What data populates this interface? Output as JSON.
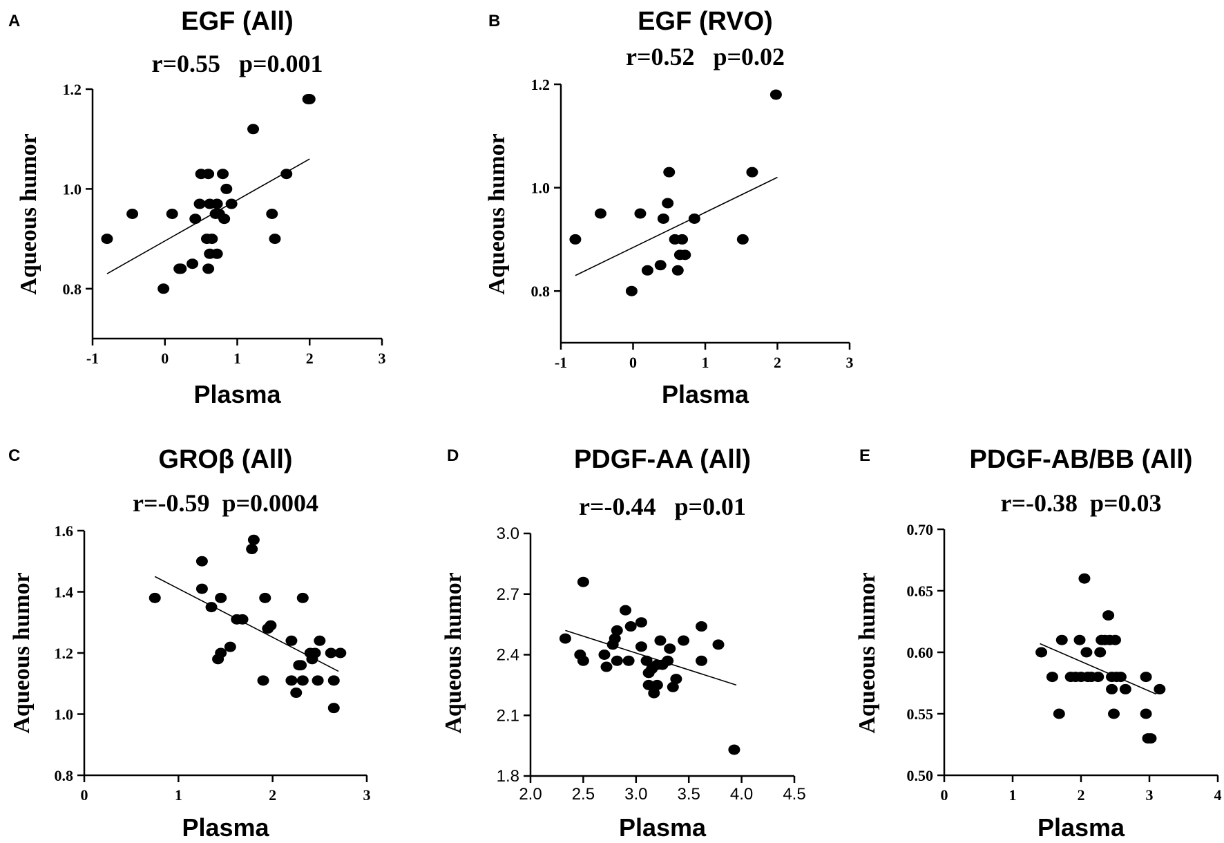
{
  "chart_data": [
    {
      "type": "scatter",
      "panel": "A",
      "title": "EGF (All)",
      "stats": "r=0.55   p=0.001",
      "xlabel": "Plasma",
      "ylabel": "Aqueous humor",
      "xlim": [
        -1,
        3
      ],
      "ylim": [
        0.7,
        1.2
      ],
      "xticks": [
        -1,
        0,
        1,
        2,
        3
      ],
      "xtick_labels": [
        "-1",
        "0",
        "1",
        "2",
        "3"
      ],
      "yticks": [
        0.8,
        1.0,
        1.2
      ],
      "ytick_labels": [
        "0.8",
        "1.0",
        "1.2"
      ],
      "fit": {
        "x": [
          -0.8,
          2.0
        ],
        "y": [
          0.83,
          1.06
        ]
      },
      "points": [
        [
          -0.8,
          0.9
        ],
        [
          -0.45,
          0.95
        ],
        [
          0.1,
          0.95
        ],
        [
          -0.02,
          0.8
        ],
        [
          0.2,
          0.84
        ],
        [
          0.22,
          0.84
        ],
        [
          0.38,
          0.85
        ],
        [
          0.42,
          0.94
        ],
        [
          0.48,
          0.97
        ],
        [
          0.5,
          1.03
        ],
        [
          0.6,
          1.03
        ],
        [
          0.58,
          0.9
        ],
        [
          0.62,
          0.97
        ],
        [
          0.62,
          0.87
        ],
        [
          0.6,
          0.84
        ],
        [
          0.65,
          0.9
        ],
        [
          0.7,
          0.95
        ],
        [
          0.72,
          0.97
        ],
        [
          0.72,
          0.87
        ],
        [
          0.75,
          0.95
        ],
        [
          0.8,
          1.03
        ],
        [
          0.82,
          0.94
        ],
        [
          0.85,
          1.0
        ],
        [
          0.92,
          0.97
        ],
        [
          1.22,
          1.12
        ],
        [
          1.48,
          0.95
        ],
        [
          1.52,
          0.9
        ],
        [
          1.68,
          1.03
        ],
        [
          1.98,
          1.18
        ],
        [
          2.0,
          1.18
        ]
      ]
    },
    {
      "type": "scatter",
      "panel": "B",
      "title": "EGF (RVO)",
      "stats": "r=0.52   p=0.02",
      "xlabel": "Plasma",
      "ylabel": "Aqueous humor",
      "xlim": [
        -1,
        3
      ],
      "ylim": [
        0.7,
        1.2
      ],
      "xticks": [
        -1,
        0,
        1,
        2,
        3
      ],
      "xtick_labels": [
        "-1",
        "0",
        "1",
        "2",
        "3"
      ],
      "yticks": [
        0.8,
        1.0,
        1.2
      ],
      "ytick_labels": [
        "0.8",
        "1.0",
        "1.2"
      ],
      "fit": {
        "x": [
          -0.8,
          2.0
        ],
        "y": [
          0.83,
          1.02
        ]
      },
      "points": [
        [
          -0.8,
          0.9
        ],
        [
          -0.45,
          0.95
        ],
        [
          0.1,
          0.95
        ],
        [
          -0.02,
          0.8
        ],
        [
          0.2,
          0.84
        ],
        [
          0.38,
          0.85
        ],
        [
          0.42,
          0.94
        ],
        [
          0.48,
          0.97
        ],
        [
          0.5,
          1.03
        ],
        [
          0.58,
          0.9
        ],
        [
          0.62,
          0.84
        ],
        [
          0.65,
          0.87
        ],
        [
          0.68,
          0.9
        ],
        [
          0.72,
          0.87
        ],
        [
          0.85,
          0.94
        ],
        [
          1.52,
          0.9
        ],
        [
          1.65,
          1.03
        ],
        [
          1.98,
          1.18
        ]
      ]
    },
    {
      "type": "scatter",
      "panel": "C",
      "title": "GROβ (All)",
      "stats": "r=-0.59  p=0.0004",
      "xlabel": "Plasma",
      "ylabel": "Aqueous humor",
      "xlim": [
        0,
        3
      ],
      "ylim": [
        0.8,
        1.6
      ],
      "xticks": [
        0,
        1,
        2,
        3
      ],
      "xtick_labels": [
        "0",
        "1",
        "2",
        "3"
      ],
      "yticks": [
        0.8,
        1.0,
        1.2,
        1.4,
        1.6
      ],
      "ytick_labels": [
        "0.8",
        "1.0",
        "1.2",
        "1.4",
        "1.6"
      ],
      "fit": {
        "x": [
          0.75,
          2.7
        ],
        "y": [
          1.45,
          1.14
        ]
      },
      "points": [
        [
          0.75,
          1.38
        ],
        [
          1.25,
          1.5
        ],
        [
          1.25,
          1.41
        ],
        [
          1.35,
          1.35
        ],
        [
          1.45,
          1.38
        ],
        [
          1.42,
          1.18
        ],
        [
          1.45,
          1.2
        ],
        [
          1.55,
          1.22
        ],
        [
          1.62,
          1.31
        ],
        [
          1.68,
          1.31
        ],
        [
          1.8,
          1.57
        ],
        [
          1.78,
          1.54
        ],
        [
          1.9,
          1.11
        ],
        [
          1.92,
          1.38
        ],
        [
          1.95,
          1.28
        ],
        [
          1.98,
          1.29
        ],
        [
          2.2,
          1.24
        ],
        [
          2.2,
          1.11
        ],
        [
          2.25,
          1.07
        ],
        [
          2.28,
          1.16
        ],
        [
          2.3,
          1.16
        ],
        [
          2.32,
          1.38
        ],
        [
          2.32,
          1.11
        ],
        [
          2.4,
          1.2
        ],
        [
          2.42,
          1.18
        ],
        [
          2.45,
          1.2
        ],
        [
          2.48,
          1.11
        ],
        [
          2.5,
          1.24
        ],
        [
          2.62,
          1.2
        ],
        [
          2.65,
          1.11
        ],
        [
          2.65,
          1.02
        ],
        [
          2.72,
          1.2
        ]
      ]
    },
    {
      "type": "scatter",
      "panel": "D",
      "title": "PDGF-AA (All)",
      "stats": "r=-0.44   p=0.01",
      "xlabel": "Plasma",
      "ylabel": "Aqueous humor",
      "xlim": [
        2.0,
        4.5
      ],
      "ylim": [
        1.8,
        3.0
      ],
      "xticks": [
        2.0,
        2.5,
        3.0,
        3.5,
        4.0,
        4.5
      ],
      "xtick_labels": [
        "2.0",
        "2.5",
        "3.0",
        "3.5",
        "4.0",
        "4.5"
      ],
      "yticks": [
        1.8,
        2.1,
        2.4,
        2.7,
        3.0
      ],
      "ytick_labels": [
        "1.8",
        "2.1",
        "2.4",
        "2.7",
        "3.0"
      ],
      "fit": {
        "x": [
          2.33,
          3.95
        ],
        "y": [
          2.52,
          2.25
        ]
      },
      "points": [
        [
          2.33,
          2.48
        ],
        [
          2.47,
          2.4
        ],
        [
          2.5,
          2.37
        ],
        [
          2.5,
          2.76
        ],
        [
          2.7,
          2.4
        ],
        [
          2.72,
          2.34
        ],
        [
          2.78,
          2.45
        ],
        [
          2.8,
          2.48
        ],
        [
          2.82,
          2.52
        ],
        [
          2.82,
          2.37
        ],
        [
          2.9,
          2.62
        ],
        [
          2.93,
          2.37
        ],
        [
          2.95,
          2.54
        ],
        [
          3.05,
          2.56
        ],
        [
          3.05,
          2.44
        ],
        [
          3.1,
          2.37
        ],
        [
          3.12,
          2.31
        ],
        [
          3.12,
          2.25
        ],
        [
          3.15,
          2.33
        ],
        [
          3.17,
          2.21
        ],
        [
          3.2,
          2.25
        ],
        [
          3.2,
          2.35
        ],
        [
          3.23,
          2.47
        ],
        [
          3.25,
          2.35
        ],
        [
          3.3,
          2.37
        ],
        [
          3.32,
          2.43
        ],
        [
          3.35,
          2.24
        ],
        [
          3.38,
          2.28
        ],
        [
          3.45,
          2.47
        ],
        [
          3.62,
          2.54
        ],
        [
          3.62,
          2.37
        ],
        [
          3.78,
          2.45
        ],
        [
          3.93,
          1.93
        ]
      ]
    },
    {
      "type": "scatter",
      "panel": "E",
      "title": "PDGF-AB/BB (All)",
      "stats": "r=-0.38  p=0.03",
      "xlabel": "Plasma",
      "ylabel": "Aqueous humor",
      "xlim": [
        0,
        4
      ],
      "ylim": [
        0.5,
        0.7
      ],
      "xticks": [
        0,
        1,
        2,
        3,
        4
      ],
      "xtick_labels": [
        "0",
        "1",
        "2",
        "3",
        "4"
      ],
      "yticks": [
        0.5,
        0.55,
        0.6,
        0.65,
        0.7
      ],
      "ytick_labels": [
        "0.50",
        "0.55",
        "0.60",
        "0.65",
        "0.70"
      ],
      "fit": {
        "x": [
          1.4,
          3.1
        ],
        "y": [
          0.607,
          0.566
        ]
      },
      "points": [
        [
          1.42,
          0.6
        ],
        [
          1.58,
          0.58
        ],
        [
          1.68,
          0.55
        ],
        [
          1.72,
          0.61
        ],
        [
          1.85,
          0.58
        ],
        [
          1.92,
          0.58
        ],
        [
          1.98,
          0.61
        ],
        [
          2.0,
          0.58
        ],
        [
          2.05,
          0.66
        ],
        [
          2.08,
          0.6
        ],
        [
          2.1,
          0.58
        ],
        [
          2.15,
          0.58
        ],
        [
          2.25,
          0.58
        ],
        [
          2.28,
          0.6
        ],
        [
          2.3,
          0.61
        ],
        [
          2.35,
          0.61
        ],
        [
          2.4,
          0.63
        ],
        [
          2.42,
          0.61
        ],
        [
          2.45,
          0.58
        ],
        [
          2.45,
          0.57
        ],
        [
          2.48,
          0.55
        ],
        [
          2.5,
          0.61
        ],
        [
          2.52,
          0.58
        ],
        [
          2.58,
          0.58
        ],
        [
          2.65,
          0.57
        ],
        [
          2.95,
          0.58
        ],
        [
          2.95,
          0.55
        ],
        [
          2.98,
          0.53
        ],
        [
          3.02,
          0.53
        ],
        [
          3.15,
          0.57
        ]
      ]
    }
  ]
}
